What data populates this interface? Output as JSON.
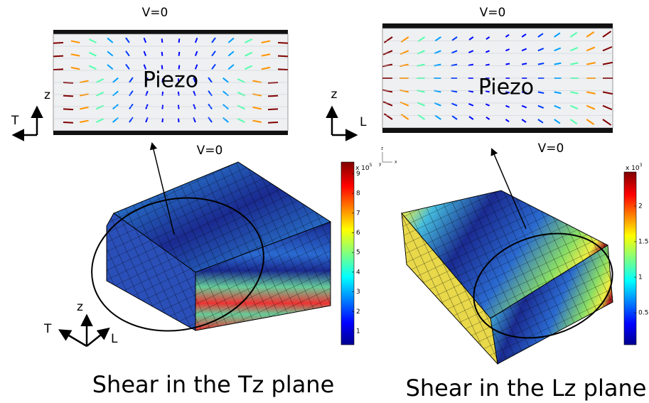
{
  "panels": [
    {
      "top_label": "V=0",
      "bottom_label": "V=0",
      "material": "Piezo",
      "axes": {
        "vertical": "z",
        "horizontal": "T"
      },
      "colorbar": {
        "scale": "x 10",
        "exponent": "5",
        "ticks": [
          1,
          2,
          3,
          4,
          5,
          6,
          7,
          8,
          9
        ]
      },
      "axes3d": {
        "vertical": "z",
        "left": "T",
        "right": "L"
      },
      "caption": "Shear in the Tz plane"
    },
    {
      "top_label": "V=0",
      "bottom_label": "V=0",
      "material": "Piezo",
      "axes": {
        "vertical": "z",
        "horizontal": "L"
      },
      "mini_axes": {
        "vertical": "z",
        "depth": "y",
        "horizontal": "x"
      },
      "colorbar": {
        "scale": "x 10",
        "exponent": "3",
        "ticks": [
          0.5,
          1,
          1.5,
          2
        ]
      },
      "caption": "Shear in the Lz plane"
    }
  ]
}
